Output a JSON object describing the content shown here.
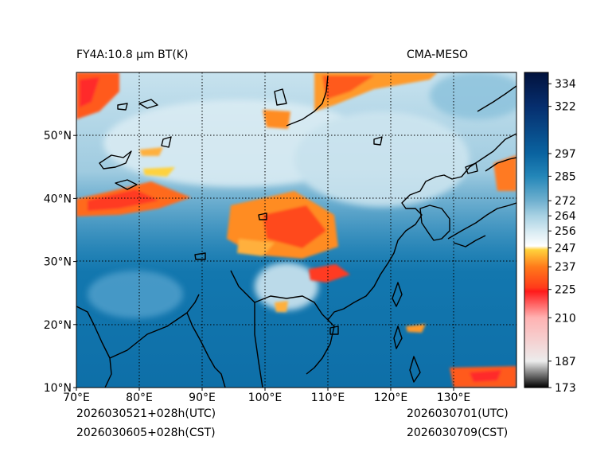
{
  "header": {
    "title_left": "FY4A:10.8 µm BT(K)",
    "title_right": "CMA-MESO"
  },
  "map": {
    "lon_range": [
      70,
      140
    ],
    "lat_range": [
      10,
      60
    ],
    "lon_ticks": [
      70,
      80,
      90,
      100,
      110,
      120,
      130
    ],
    "lon_labels": [
      "70°E",
      "80°E",
      "90°E",
      "100°E",
      "110°E",
      "120°E",
      "130°E"
    ],
    "lat_ticks": [
      10,
      20,
      30,
      40,
      50
    ],
    "lat_labels": [
      "10°N",
      "20°N",
      "30°N",
      "40°N",
      "50°N"
    ],
    "grid": "dotted"
  },
  "colorbar": {
    "range": [
      173,
      340
    ],
    "tick_values": [
      173,
      187,
      210,
      225,
      237,
      247,
      256,
      264,
      272,
      285,
      297,
      322,
      334
    ],
    "tick_labels": [
      "173",
      "187",
      "210",
      "225",
      "237",
      "247",
      "256",
      "264",
      "272",
      "285",
      "297",
      "322",
      "334"
    ],
    "stops": [
      {
        "v": 173,
        "color": "#000000"
      },
      {
        "v": 187,
        "color": "#ececec"
      },
      {
        "v": 210,
        "color": "#ffb2b2"
      },
      {
        "v": 224,
        "color": "#ff1a1a"
      },
      {
        "v": 226,
        "color": "#ff3b1a"
      },
      {
        "v": 237,
        "color": "#ff7a1a"
      },
      {
        "v": 246,
        "color": "#ffd23c"
      },
      {
        "v": 248,
        "color": "#ffffff"
      },
      {
        "v": 256,
        "color": "#d6eaf2"
      },
      {
        "v": 264,
        "color": "#a8d1e3"
      },
      {
        "v": 272,
        "color": "#6fb0cf"
      },
      {
        "v": 285,
        "color": "#2386b8"
      },
      {
        "v": 297,
        "color": "#0a63a0"
      },
      {
        "v": 322,
        "color": "#062e6e"
      },
      {
        "v": 340,
        "color": "#02123d"
      }
    ]
  },
  "footer": {
    "init_utc": "2026030521+028h(UTC)",
    "init_cst": "2026030605+028h(CST)",
    "valid_utc": "2026030701(UTC)",
    "valid_cst": "2026030709(CST)"
  }
}
